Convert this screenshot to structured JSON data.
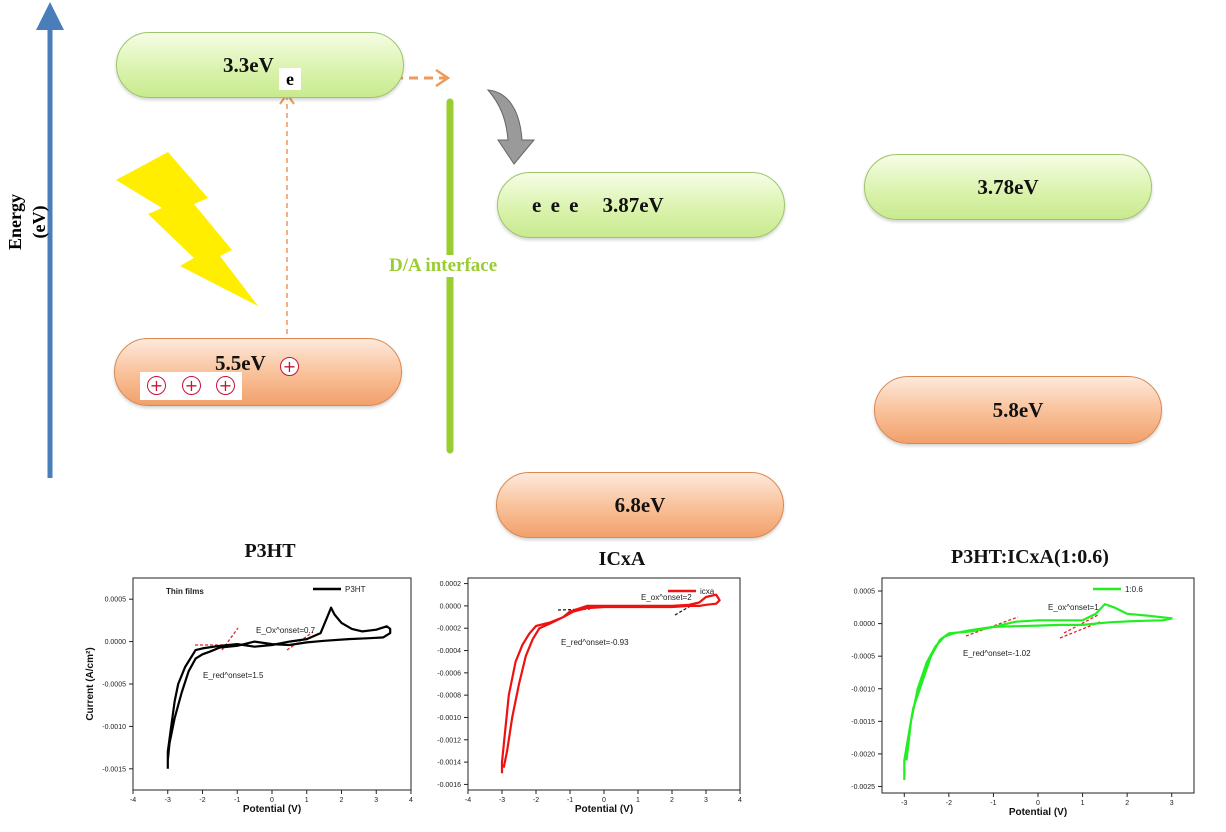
{
  "energy_diagram": {
    "y_axis_label": "Energy (eV)",
    "donor_lumo": "3.3eV",
    "donor_homo": "5.5eV",
    "acceptor_lumo": "3.87eV",
    "acceptor_homo": "6.8eV",
    "blend_lumo": "3.78eV",
    "blend_homo": "5.8eV",
    "electron_label": "e",
    "electron_row": "e e e",
    "interface_label": "D/A interface",
    "hole_symbol": "+",
    "colors": {
      "axis": "#4a7ebb",
      "interface": "#9acd32",
      "arrow": "#ee9a58",
      "lightning": "#ffee00",
      "hole": "#c4143a"
    }
  },
  "panels": [
    {
      "title": "P3HT"
    },
    {
      "title": "ICxA"
    },
    {
      "title": "P3HT:ICxA(1:0.6)"
    }
  ],
  "chart_data": [
    {
      "type": "line",
      "title": "P3HT",
      "xlabel": "Potential (V)",
      "ylabel": "Current (A/cm²)",
      "xlim": [
        -4,
        4
      ],
      "ylim": [
        -0.00175,
        0.00075
      ],
      "xticks": [
        "-4",
        "-3",
        "-2",
        "-1",
        "0",
        "1",
        "2",
        "3",
        "4"
      ],
      "yticks": [
        "0.0005",
        "0.0000",
        "-0.0005",
        "-0.0010",
        "-0.0015"
      ],
      "annotations": [
        "Thin films",
        "E_Ox^onset=0.7",
        "E_red^onset=1.5"
      ],
      "legend": "top-right",
      "series": [
        {
          "name": "P3HT",
          "color": "#000000",
          "x": [
            -3.0,
            -3.0,
            -2.9,
            -2.8,
            -2.7,
            -2.5,
            -2.2,
            -2.0,
            -1.5,
            -1.0,
            -0.5,
            0.0,
            0.5,
            1.0,
            1.4,
            1.6,
            1.7,
            1.8,
            2.0,
            2.3,
            2.6,
            3.0,
            3.3,
            3.4,
            3.4,
            3.2,
            2.8,
            2.2,
            1.5,
            1.0,
            0.5,
            0.0,
            -0.5,
            -1.0,
            -1.5,
            -1.8,
            -2.0,
            -2.2,
            -2.4,
            -2.6,
            -2.8,
            -2.95,
            -3.0
          ],
          "y": [
            -0.0015,
            -0.0013,
            -0.001,
            -0.0007,
            -0.0005,
            -0.0003,
            -0.0001,
            -8e-05,
            -5e-05,
            -3e-05,
            -6e-05,
            -4e-05,
            0.0,
            3e-05,
            0.0001,
            0.0003,
            0.0004,
            0.00032,
            0.00022,
            0.00015,
            0.00012,
            0.00014,
            0.00018,
            0.00015,
            0.0001,
            5e-05,
            4e-05,
            3e-05,
            1e-05,
            -1e-05,
            -4e-05,
            -3e-05,
            -0.0,
            -5e-05,
            -7e-05,
            -0.00012,
            -0.00015,
            -0.0002,
            -0.00035,
            -0.0006,
            -0.0009,
            -0.0012,
            -0.0014
          ]
        }
      ]
    },
    {
      "type": "line",
      "title": "ICxA",
      "xlabel": "Potential (V)",
      "ylabel": "",
      "xlim": [
        -4,
        4
      ],
      "ylim": [
        -0.00165,
        0.00025
      ],
      "xticks": [
        "-4",
        "-3",
        "-2",
        "-1",
        "0",
        "1",
        "2",
        "3",
        "4"
      ],
      "yticks": [
        "0.0002",
        "0.0000",
        "-0.0002",
        "-0.0004",
        "-0.0006",
        "-0.0008",
        "-0.0010",
        "-0.0012",
        "-0.0014",
        "-0.0016"
      ],
      "annotations": [
        "E_ox^onset=2",
        "E_red^onset=-0.93"
      ],
      "legend": "top-right",
      "series": [
        {
          "name": "icxa",
          "color": "#ee1111",
          "x": [
            -3.0,
            -3.0,
            -2.9,
            -2.8,
            -2.6,
            -2.4,
            -2.2,
            -2.0,
            -1.6,
            -1.2,
            -1.0,
            -0.5,
            0.0,
            1.0,
            2.0,
            2.5,
            2.8,
            3.0,
            3.3,
            3.4,
            3.3,
            3.0,
            2.8,
            2.5,
            2.0,
            1.0,
            0.0,
            -0.5,
            -0.9,
            -1.2,
            -1.6,
            -1.9,
            -2.1,
            -2.3,
            -2.5,
            -2.7,
            -2.85,
            -2.95
          ],
          "y": [
            -0.0015,
            -0.0014,
            -0.0011,
            -0.0008,
            -0.0005,
            -0.00035,
            -0.00025,
            -0.00018,
            -0.00015,
            -0.0001,
            -5e-05,
            0.0,
            0.0,
            0.0,
            0.0,
            1e-05,
            3e-05,
            8e-05,
            0.0001,
            5e-05,
            2e-05,
            1e-05,
            0.0,
            0.0,
            -1e-05,
            -1e-05,
            -1e-05,
            -2e-05,
            -5e-05,
            -0.0001,
            -0.00016,
            -0.0002,
            -0.0003,
            -0.00045,
            -0.0007,
            -0.001,
            -0.0013,
            -0.00145
          ]
        }
      ]
    },
    {
      "type": "line",
      "title": "P3HT:ICxA(1:0.6)",
      "xlabel": "Potential (V)",
      "ylabel": "",
      "xlim": [
        -3.5,
        3.5
      ],
      "ylim": [
        -0.0026,
        0.0007
      ],
      "xticks": [
        "-3",
        "-2",
        "-1",
        "0",
        "1",
        "2",
        "3"
      ],
      "yticks": [
        "0.0005",
        "0.0000",
        "-0.0005",
        "-0.0010",
        "-0.0015",
        "-0.0020",
        "-0.0025"
      ],
      "annotations": [
        "E_ox^onset=1",
        "E_red^onset=-1.02"
      ],
      "legend": "top-right",
      "series": [
        {
          "name": "1:0.6",
          "color": "#22ee22",
          "x": [
            -3.0,
            -3.0,
            -2.9,
            -2.8,
            -2.6,
            -2.4,
            -2.2,
            -2.0,
            -1.5,
            -1.0,
            -0.5,
            0.0,
            0.5,
            1.0,
            1.3,
            1.5,
            1.7,
            2.0,
            2.5,
            3.0,
            2.8,
            2.2,
            1.6,
            1.0,
            0.5,
            0.0,
            -0.5,
            -1.0,
            -1.5,
            -1.9,
            -2.1,
            -2.3,
            -2.5,
            -2.7,
            -2.85,
            -2.95
          ],
          "y": [
            -0.0024,
            -0.0021,
            -0.0017,
            -0.0013,
            -0.0009,
            -0.0005,
            -0.00025,
            -0.00015,
            -0.00012,
            -5e-05,
            3e-05,
            5e-05,
            5e-05,
            5e-05,
            0.00015,
            0.0003,
            0.00025,
            0.00015,
            0.00012,
            8e-05,
            5e-05,
            4e-05,
            2e-05,
            -2e-05,
            -2e-05,
            -3e-05,
            -4e-05,
            -5e-05,
            -0.0001,
            -0.00015,
            -0.0002,
            -0.00035,
            -0.0006,
            -0.001,
            -0.0015,
            -0.0021
          ]
        }
      ]
    }
  ]
}
